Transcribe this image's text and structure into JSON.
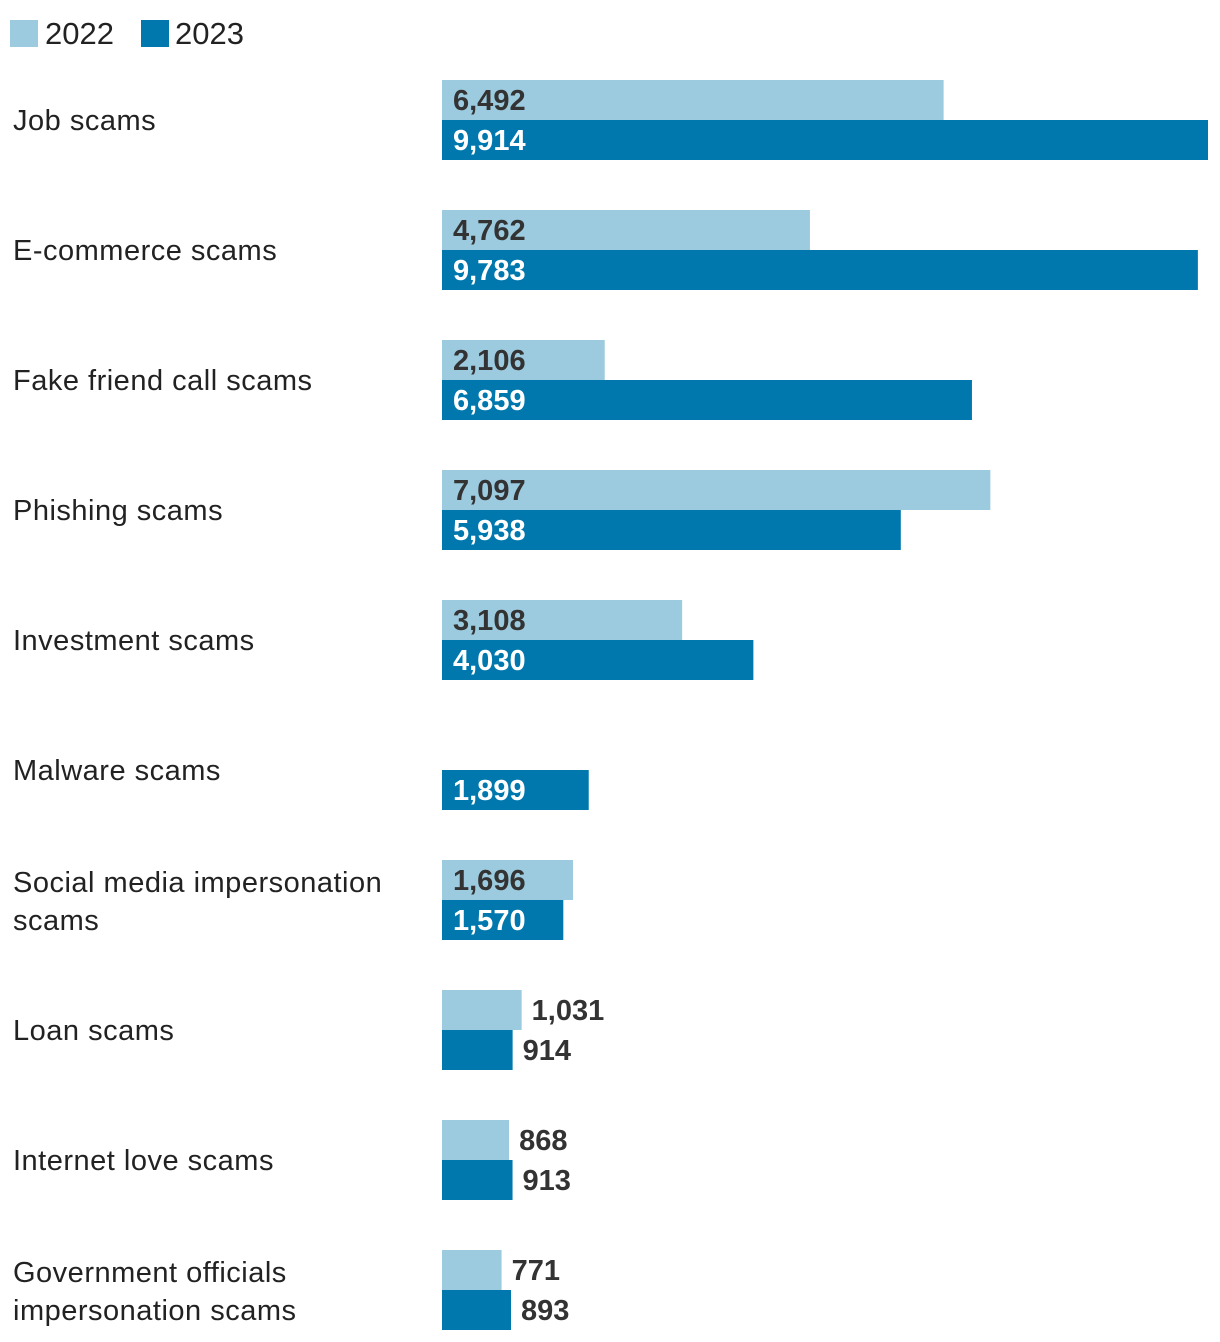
{
  "chart_data": {
    "type": "bar",
    "orientation": "horizontal",
    "legend": {
      "placement": "top-left"
    },
    "grid": false,
    "xlim": [
      0,
      10000
    ],
    "series": [
      {
        "name": "2022",
        "color": "#9ccadf",
        "values": [
          6492,
          4762,
          2106,
          7097,
          3108,
          null,
          1696,
          1031,
          868,
          771
        ],
        "labels": [
          "6,492",
          "4,762",
          "2,106",
          "7,097",
          "3,108",
          "",
          "1,696",
          "1,031",
          "868",
          "771"
        ]
      },
      {
        "name": "2023",
        "color": "#0078ad",
        "values": [
          9914,
          9783,
          6859,
          5938,
          4030,
          1899,
          1570,
          914,
          913,
          893
        ],
        "labels": [
          "9,914",
          "9,783",
          "6,859",
          "5,938",
          "4,030",
          "1,899",
          "1,570",
          "914",
          "913",
          "893"
        ]
      }
    ],
    "categories": [
      [
        "Job scams"
      ],
      [
        "E-commerce scams"
      ],
      [
        "Fake friend call scams"
      ],
      [
        "Phishing scams"
      ],
      [
        "Investment scams"
      ],
      [
        "Malware scams"
      ],
      [
        "Social media impersonation",
        "scams"
      ],
      [
        "Loan scams"
      ],
      [
        "Internet love scams"
      ],
      [
        "Government officials",
        "impersonation scams"
      ]
    ]
  }
}
